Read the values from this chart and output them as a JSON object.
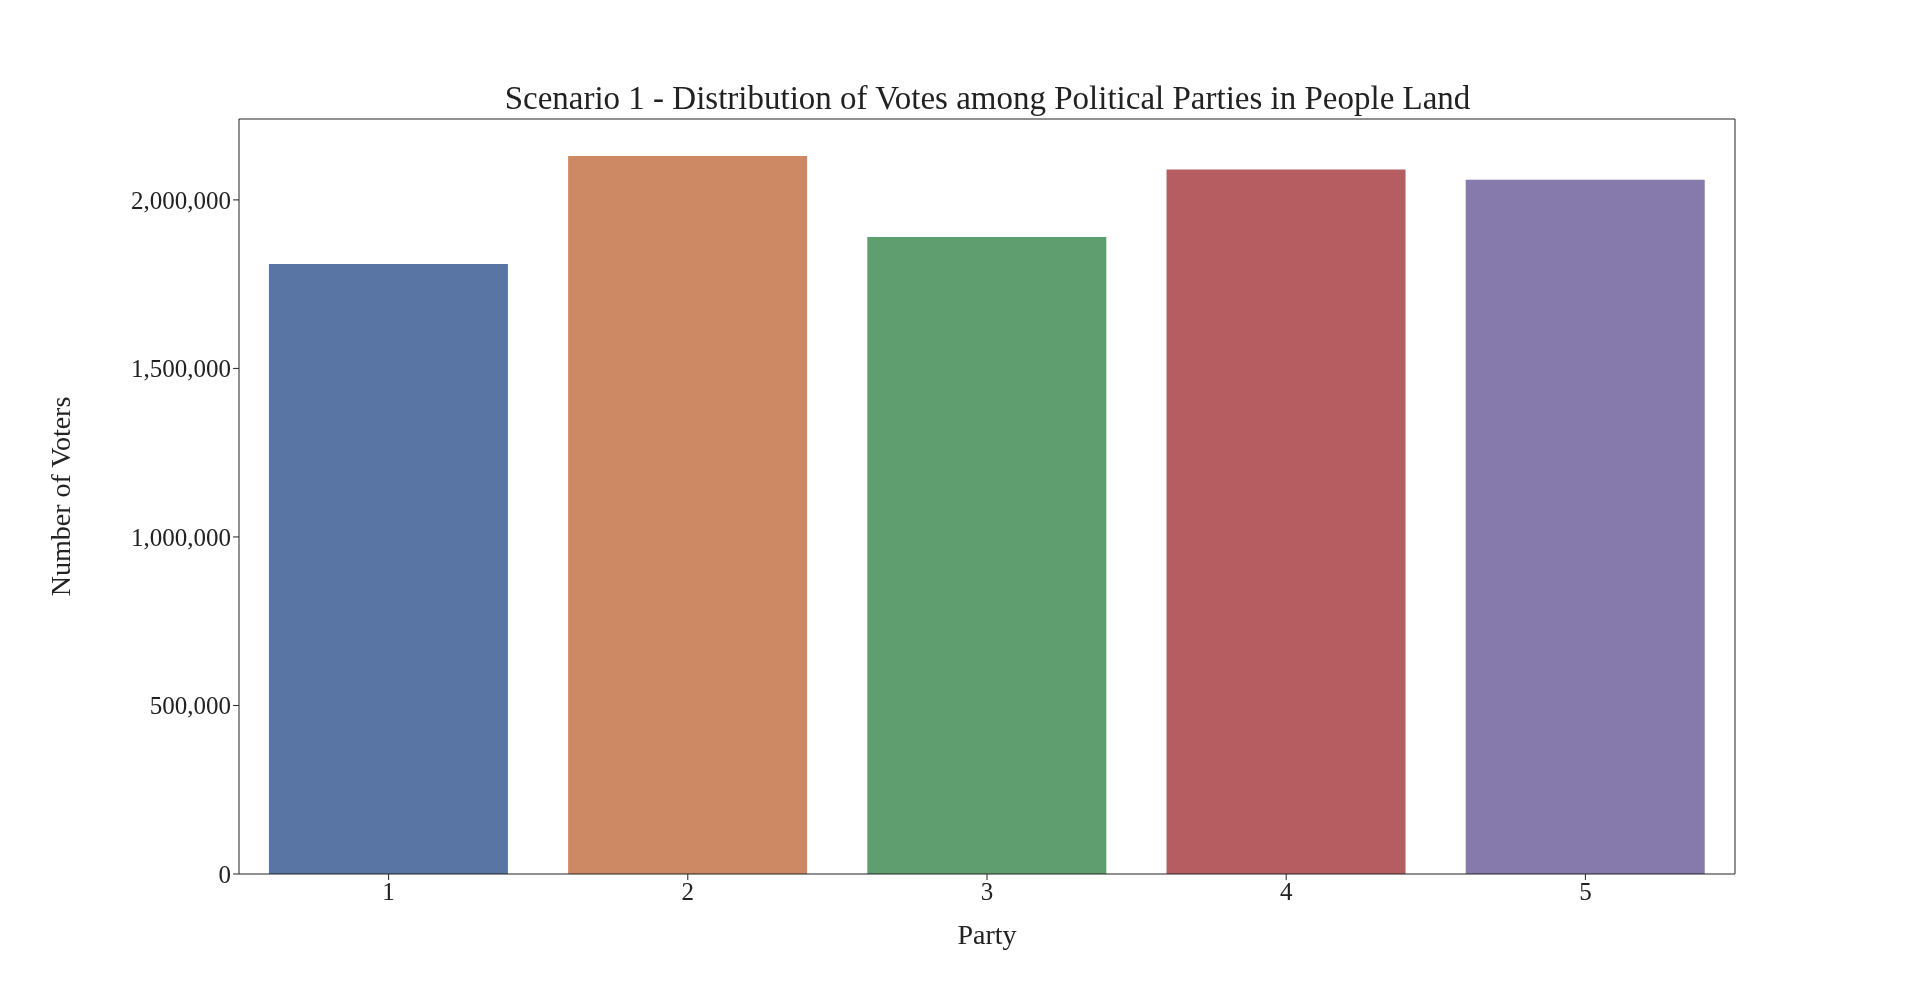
{
  "chart_data": {
    "type": "bar",
    "title": "Scenario 1 - Distribution of Votes among Political Parties in People Land",
    "xlabel": "Party",
    "ylabel": "Number of Voters",
    "categories": [
      "1",
      "2",
      "3",
      "4",
      "5"
    ],
    "values": [
      1810000,
      2130000,
      1890000,
      2090000,
      2060000
    ],
    "colors": [
      "#5975a4",
      "#cc8963",
      "#5f9e6e",
      "#b55d60",
      "#857aab"
    ],
    "ylim": [
      0,
      2240000
    ],
    "yticks": [
      {
        "value": 0,
        "label": "0"
      },
      {
        "value": 500000,
        "label": "500,000"
      },
      {
        "value": 1000000,
        "label": "1,000,000"
      },
      {
        "value": 1500000,
        "label": "1,500,000"
      },
      {
        "value": 2000000,
        "label": "2,000,000"
      }
    ],
    "grid": false
  }
}
